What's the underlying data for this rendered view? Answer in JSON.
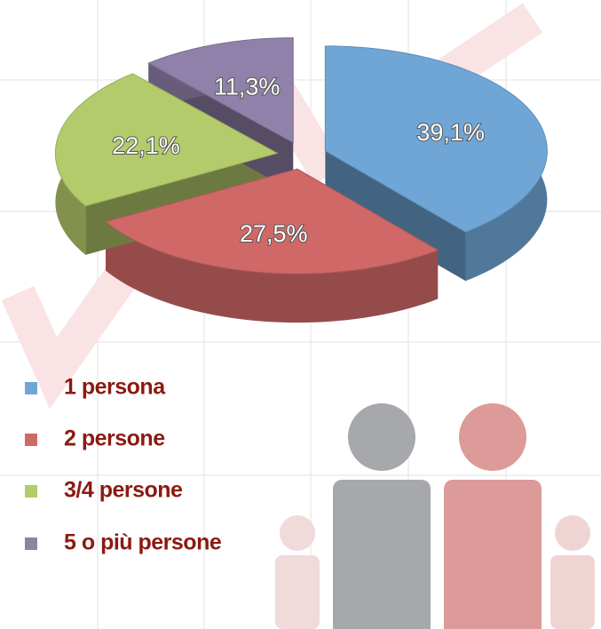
{
  "chart_data": {
    "type": "pie3d",
    "categories": [
      "1 persona",
      "2 persone",
      "3/4 persone",
      "5 o più persone"
    ],
    "values": [
      39.1,
      27.5,
      22.1,
      11.3
    ],
    "value_labels": [
      "39,1%",
      "27,5%",
      "22,1%",
      "11,3%"
    ],
    "colors": [
      "#6fa6d6",
      "#d06868",
      "#b4cb6c",
      "#8f81a9"
    ],
    "legend": "bottom-left"
  }
}
